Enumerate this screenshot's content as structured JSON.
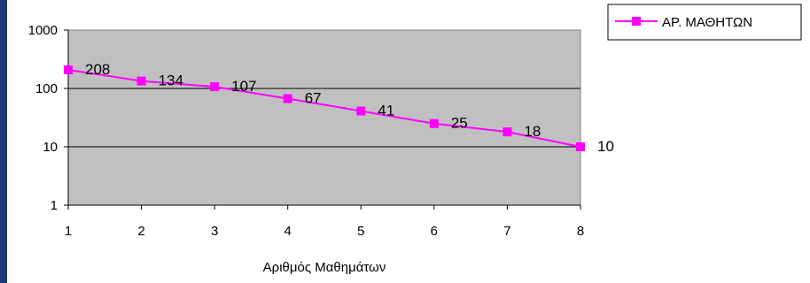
{
  "colors": {
    "slide_background": "#1b3a7e",
    "chart_area": "#ffffff",
    "plot_area": "#c0c0c0",
    "gridline": "#000000",
    "series": "#ff00ff"
  },
  "chart_data": {
    "type": "line",
    "title": "",
    "xlabel": "Αριθμός Μαθημάτων",
    "ylabel": "",
    "y_scale": "log",
    "ylim": [
      1,
      1000
    ],
    "y_ticks": [
      "1",
      "10",
      "100",
      "1000"
    ],
    "x": [
      1,
      2,
      3,
      4,
      5,
      6,
      7,
      8
    ],
    "x_ticks": [
      "1",
      "2",
      "3",
      "4",
      "5",
      "6",
      "7",
      "8"
    ],
    "grid": true,
    "legend_position": "top-right",
    "series": [
      {
        "name": "ΑΡ. ΜΑΘΗΤΩΝ",
        "values": [
          208,
          134,
          107,
          67,
          41,
          25,
          18,
          10
        ],
        "labels": [
          "208",
          "134",
          "107",
          "67",
          "41",
          "25",
          "18",
          "10"
        ],
        "marker": "square"
      }
    ]
  }
}
